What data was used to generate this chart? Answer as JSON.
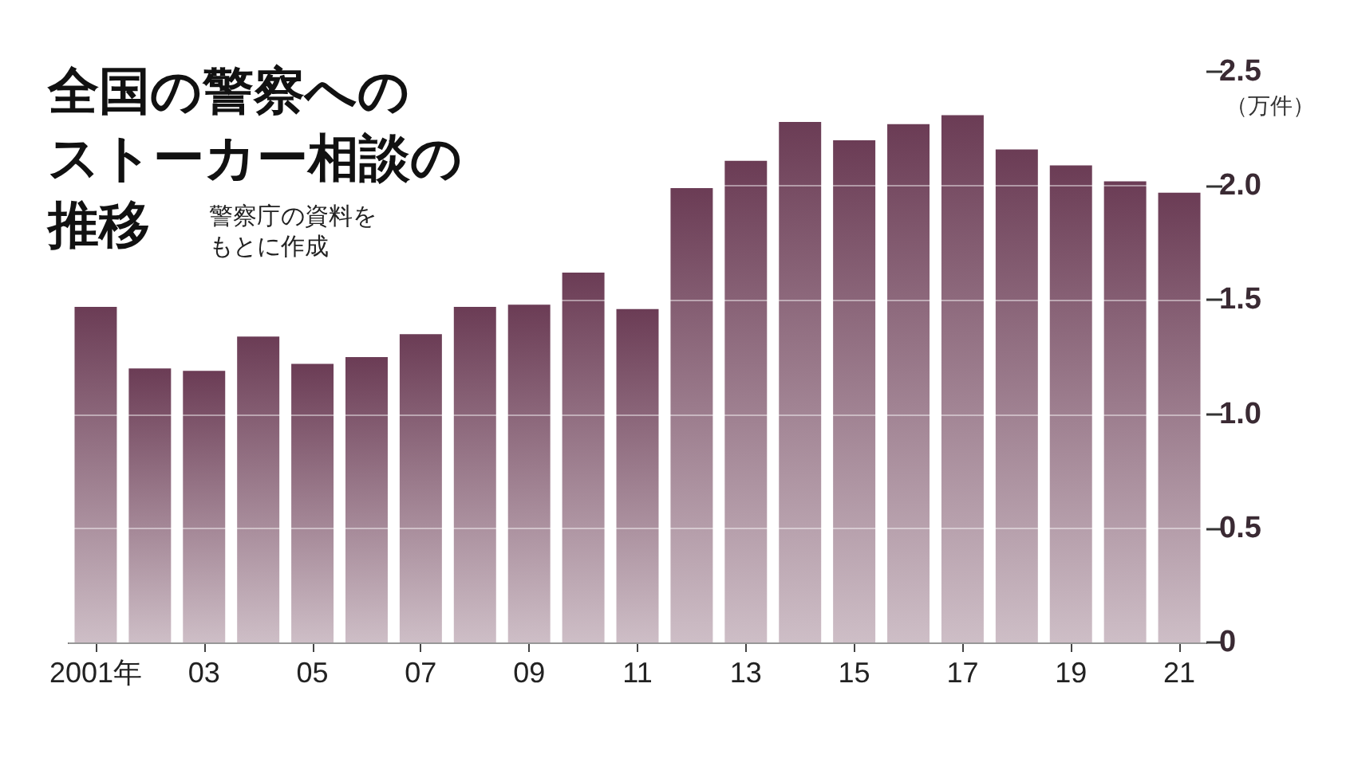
{
  "chart_data": {
    "type": "bar",
    "title": "全国の警察へのストーカー相談の推移",
    "subtitle": "警察庁の資料をもとに作成",
    "ylabel": "（万件）",
    "categories": [
      "2001年",
      null,
      "03",
      null,
      "05",
      null,
      "07",
      null,
      "09",
      null,
      "11",
      null,
      "13",
      null,
      "15",
      null,
      "17",
      null,
      "19",
      null,
      "21"
    ],
    "values": [
      1.47,
      1.2,
      1.19,
      1.34,
      1.22,
      1.25,
      1.35,
      1.47,
      1.48,
      1.62,
      1.46,
      1.99,
      2.11,
      2.28,
      2.2,
      2.27,
      2.31,
      2.16,
      2.09,
      2.02,
      1.97
    ],
    "color": "#6b3c55",
    "ylim": [
      0,
      2.5
    ],
    "yticks": [
      0,
      0.5,
      {
        "value": 1,
        "label": "1.0"
      },
      1.5,
      {
        "value": 2,
        "label": "2.0"
      },
      2.5
    ],
    "grid": "y"
  }
}
